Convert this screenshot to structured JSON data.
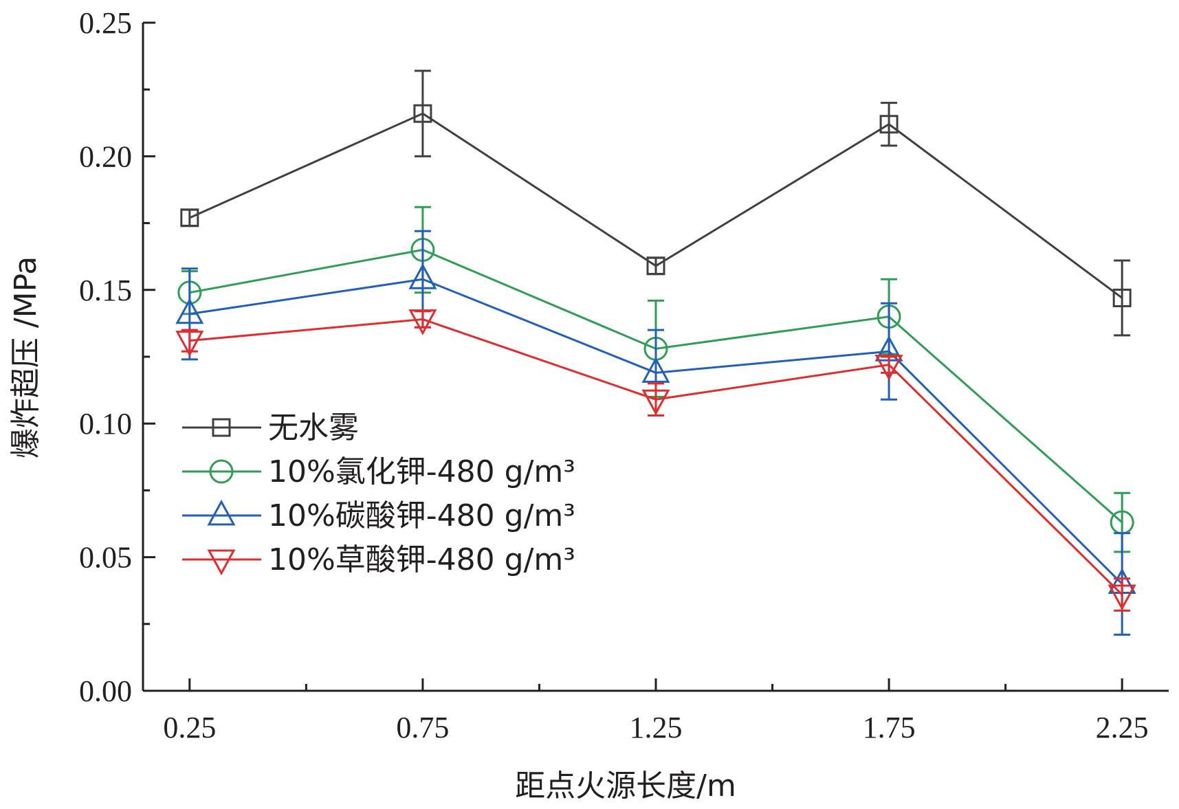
{
  "chart_data": {
    "type": "line",
    "title": "",
    "xlabel": "距点火源长度/m",
    "ylabel": "爆炸超压 /MPa",
    "x": [
      0.25,
      0.75,
      1.25,
      1.75,
      2.25
    ],
    "x_tick_labels": [
      "0.25",
      "0.75",
      "1.25",
      "1.75",
      "2.25"
    ],
    "xlim": [
      0.15,
      2.35
    ],
    "ylim": [
      0,
      0.25
    ],
    "y_tick_labels": [
      "0.00",
      "0.05",
      "0.10",
      "0.15",
      "0.20",
      "0.25"
    ],
    "grid": false,
    "legend_position": "left-middle",
    "series": [
      {
        "name": "无水雾",
        "color": "#404040",
        "marker": "square",
        "values": [
          0.177,
          0.216,
          0.159,
          0.212,
          0.147
        ],
        "errors": [
          0.003,
          0.016,
          0.003,
          0.008,
          0.014
        ]
      },
      {
        "name": "10%氯化钾-480 g/m³",
        "color": "#2e9e55",
        "marker": "circle",
        "values": [
          0.149,
          0.165,
          0.128,
          0.14,
          0.063
        ],
        "errors": [
          0.008,
          0.016,
          0.018,
          0.014,
          0.011
        ]
      },
      {
        "name": "10%碳酸钾-480 g/m³",
        "color": "#2060b8",
        "marker": "triangle-up",
        "values": [
          0.141,
          0.154,
          0.119,
          0.127,
          0.04
        ],
        "errors": [
          0.017,
          0.018,
          0.016,
          0.018,
          0.019
        ]
      },
      {
        "name": "10%草酸钾-480 g/m³",
        "color": "#e02c2c",
        "marker": "triangle-down",
        "values": [
          0.131,
          0.139,
          0.109,
          0.122,
          0.036
        ],
        "errors": [
          0.004,
          0.003,
          0.006,
          0.003,
          0.006
        ]
      }
    ]
  }
}
